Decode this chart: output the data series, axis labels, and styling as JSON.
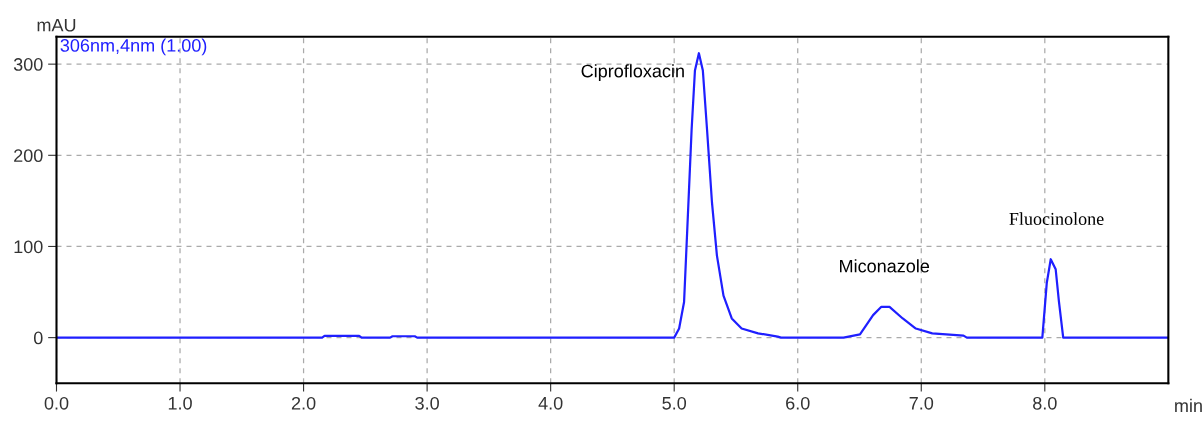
{
  "chart_data": {
    "type": "line",
    "xlabel": "min",
    "ylabel": "mAU",
    "series": [
      {
        "name": "306nm,4nm (1.00)",
        "color": "#1f1fff",
        "x": [
          0,
          2.15,
          2.17,
          2.45,
          2.47,
          2.7,
          2.72,
          2.9,
          2.92,
          5.0,
          5.04,
          5.08,
          5.106,
          5.141,
          5.168,
          5.2,
          5.232,
          5.266,
          5.306,
          5.346,
          5.399,
          5.466,
          5.546,
          5.679,
          5.838,
          5.865,
          6.371,
          6.504,
          6.61,
          6.677,
          6.743,
          6.85,
          6.956,
          7.089,
          7.342,
          7.369,
          7.98,
          8.016,
          8.048,
          8.088,
          8.114,
          8.149,
          9.0
        ],
        "values": [
          0,
          0,
          2,
          2,
          0,
          0,
          1.5,
          1.5,
          0,
          0,
          10,
          39,
          119,
          228,
          293,
          312,
          293,
          228,
          148,
          90,
          46,
          21,
          10,
          4.7,
          1.1,
          0,
          0,
          3.6,
          24.7,
          33.8,
          33.8,
          21,
          10,
          4.7,
          2.2,
          0,
          0,
          60,
          86,
          75,
          40,
          0,
          0
        ]
      }
    ],
    "xlim": [
      0,
      9.0
    ],
    "ylim": [
      -50,
      330
    ],
    "xticks": [
      {
        "value": 0,
        "label": "0.0"
      },
      {
        "value": 1,
        "label": "1.0"
      },
      {
        "value": 2,
        "label": "2.0"
      },
      {
        "value": 3,
        "label": "3.0"
      },
      {
        "value": 4,
        "label": "4.0"
      },
      {
        "value": 5,
        "label": "5.0"
      },
      {
        "value": 6,
        "label": "6.0"
      },
      {
        "value": 7,
        "label": "7.0"
      },
      {
        "value": 8,
        "label": "8.0"
      }
    ],
    "yticks": [
      0,
      100,
      200,
      300
    ],
    "grid": true,
    "marker": "none",
    "line_style": "solid",
    "legend": "top left",
    "annotations": [
      {
        "text": "Ciprofloxacin",
        "x": 5.2,
        "y": 312
      },
      {
        "text": "Miconazole",
        "x": 6.7,
        "y": 34
      },
      {
        "text": "Fluocinolone",
        "x": 8.05,
        "y": 86
      }
    ]
  }
}
